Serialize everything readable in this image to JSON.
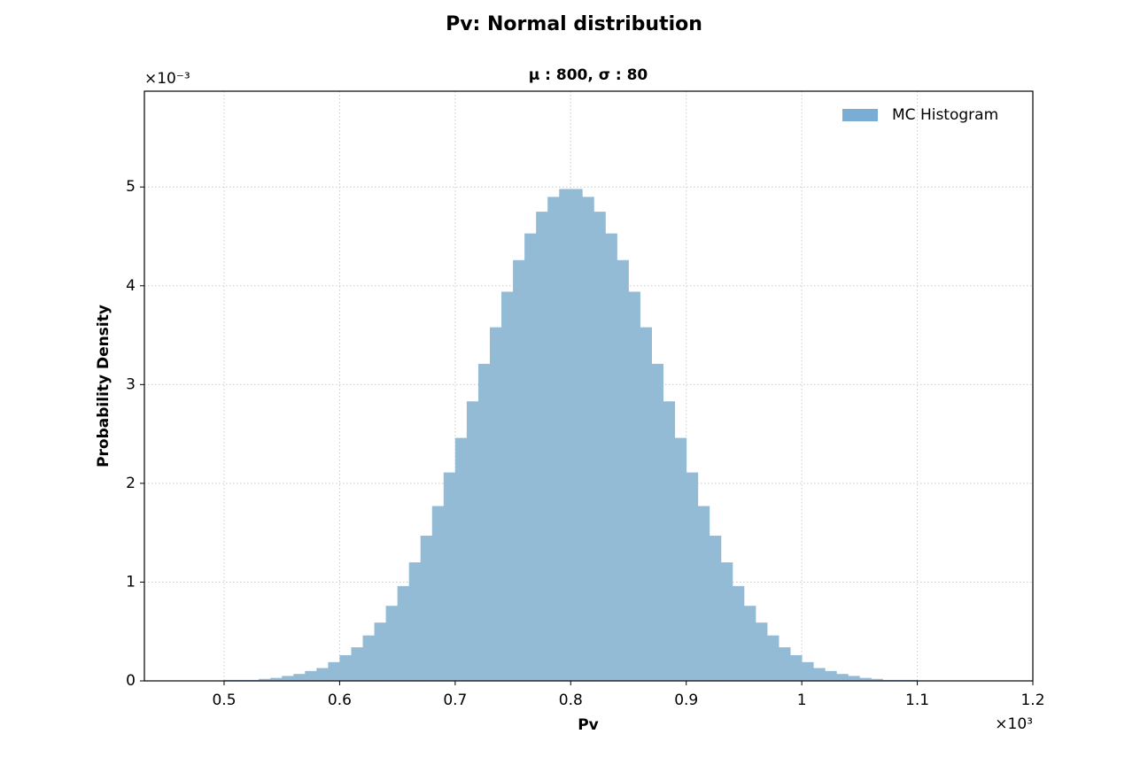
{
  "chart_data": {
    "type": "histogram",
    "title": "Pv: Normal distribution",
    "subtitle": "μ : 800, σ : 80",
    "xlabel": "Pv",
    "ylabel": "Probability Density",
    "x_offset": "×10³",
    "y_offset": "×10⁻³",
    "series": [
      {
        "name": "MC Histogram",
        "color": "#94bbd6",
        "legend_color": "#7aadd4",
        "bins": [
          0.5,
          0.51,
          0.52,
          0.53,
          0.54,
          0.55,
          0.56,
          0.57,
          0.58,
          0.59,
          0.6,
          0.61,
          0.62,
          0.63,
          0.64,
          0.65,
          0.66,
          0.67,
          0.68,
          0.69,
          0.7,
          0.71,
          0.72,
          0.73,
          0.74,
          0.75,
          0.76,
          0.77,
          0.78,
          0.79,
          0.8,
          0.81,
          0.82,
          0.83,
          0.84,
          0.85,
          0.86,
          0.87,
          0.88,
          0.89,
          0.9,
          0.91,
          0.92,
          0.93,
          0.94,
          0.95,
          0.96,
          0.97,
          0.98,
          0.99,
          1.0,
          1.01,
          1.02,
          1.03,
          1.04,
          1.05,
          1.06,
          1.07,
          1.08,
          1.09,
          1.1
        ],
        "values": [
          0.01,
          0.01,
          0.01,
          0.02,
          0.03,
          0.05,
          0.07,
          0.1,
          0.13,
          0.19,
          0.26,
          0.34,
          0.46,
          0.59,
          0.76,
          0.96,
          1.2,
          1.47,
          1.77,
          2.11,
          2.46,
          2.83,
          3.21,
          3.58,
          3.94,
          4.26,
          4.53,
          4.75,
          4.9,
          4.98,
          4.98,
          4.9,
          4.75,
          4.53,
          4.26,
          3.94,
          3.58,
          3.21,
          2.83,
          2.46,
          2.11,
          1.77,
          1.47,
          1.2,
          0.96,
          0.76,
          0.59,
          0.46,
          0.34,
          0.26,
          0.19,
          0.13,
          0.1,
          0.07,
          0.05,
          0.03,
          0.02,
          0.01,
          0.01,
          0.01
        ]
      }
    ],
    "xlim": [
      0.431,
      1.2
    ],
    "ylim": [
      0,
      5.97
    ],
    "xticks": [
      0.5,
      0.6,
      0.7,
      0.8,
      0.9,
      1.0,
      1.1,
      1.2
    ],
    "yticks": [
      0,
      1,
      2,
      3,
      4,
      5
    ],
    "grid": true,
    "legend": "upper right"
  }
}
